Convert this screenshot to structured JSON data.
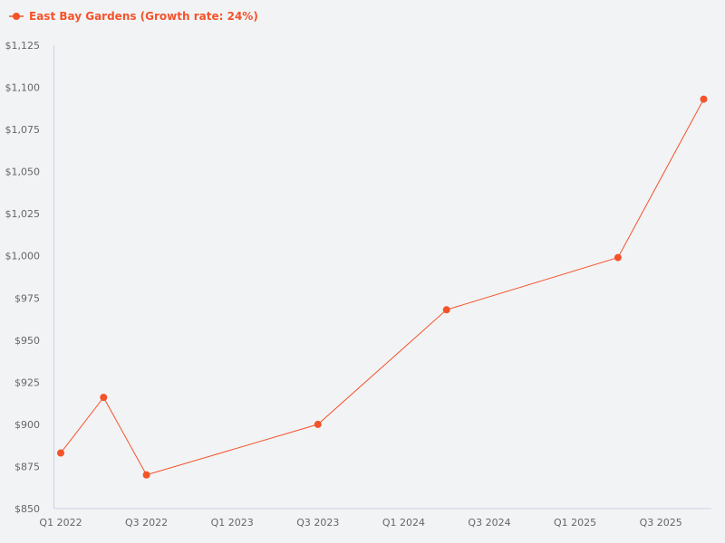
{
  "chart_data": {
    "type": "line",
    "title": "",
    "xlabel": "",
    "ylabel": "",
    "legend": {
      "position": "top-left",
      "entries": [
        "East Bay Gardens (Growth rate: 24%)"
      ]
    },
    "x_tick_labels": [
      "Q1 2022",
      "Q3 2022",
      "Q1 2023",
      "Q3 2023",
      "Q1 2024",
      "Q3 2024",
      "Q1 2025",
      "Q3 2025"
    ],
    "y_tick_labels": [
      "$850",
      "$875",
      "$900",
      "$925",
      "$950",
      "$975",
      "$1,000",
      "$1,025",
      "$1,050",
      "$1,075",
      "$1,100",
      "$1,125"
    ],
    "ylim": [
      850,
      1125
    ],
    "grid": false,
    "series": [
      {
        "name": "East Bay Gardens (Growth rate: 24%)",
        "color": "#f4532a",
        "points": [
          {
            "x": "Q1 2022",
            "y": 883
          },
          {
            "x": "Q2 2022",
            "y": 916
          },
          {
            "x": "Q3 2022",
            "y": 870
          },
          {
            "x": "Q3 2023",
            "y": 900
          },
          {
            "x": "Q2 2024",
            "y": 968
          },
          {
            "x": "Q2 2025",
            "y": 999
          },
          {
            "x": "Q4 2025",
            "y": 1093
          }
        ]
      }
    ]
  },
  "legend": {
    "label": "East Bay Gardens (Growth rate: 24%)"
  },
  "colors": {
    "series": "#f4532a",
    "axis": "#c9d3e6",
    "tick_text": "#666666",
    "background": "#f2f3f5"
  }
}
